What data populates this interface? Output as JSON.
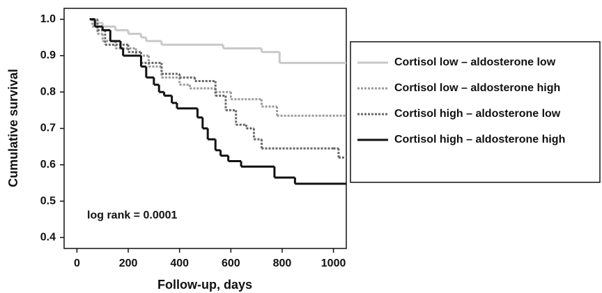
{
  "chart_data": {
    "type": "line",
    "step": "post",
    "x_label": "Follow-up, days",
    "y_label": "Cumulative survival",
    "annotation": "log rank = 0.0001",
    "xlim": [
      -50,
      1050
    ],
    "xticks": [
      0,
      200,
      400,
      600,
      800,
      1000
    ],
    "ylim": [
      0.37,
      1.03
    ],
    "yticks": [
      {
        "value": 0.4,
        "label": "0.4"
      },
      {
        "value": 0.5,
        "label": "0.5"
      },
      {
        "value": 0.6,
        "label": "0.6"
      },
      {
        "value": 0.7,
        "label": "0.7"
      },
      {
        "value": 0.8,
        "label": "0.8"
      },
      {
        "value": 0.9,
        "label": "0.9"
      },
      {
        "value": 1.0,
        "label": "1.0"
      }
    ],
    "series": [
      {
        "name": "Cortisol low – aldosterone low",
        "color": "#c8c8c8",
        "dash": "none",
        "x": [
          50,
          70,
          100,
          150,
          200,
          250,
          270,
          330,
          570,
          720,
          790,
          1050
        ],
        "values": [
          1.0,
          0.99,
          0.98,
          0.97,
          0.96,
          0.95,
          0.94,
          0.93,
          0.92,
          0.91,
          0.88,
          0.88
        ]
      },
      {
        "name": "Cortisol low – aldosterone high",
        "color": "#9a9a9a",
        "dash": "3,2",
        "x": [
          50,
          60,
          80,
          100,
          150,
          230,
          280,
          330,
          400,
          440,
          540,
          600,
          720,
          780,
          1050
        ],
        "values": [
          1.0,
          0.98,
          0.96,
          0.94,
          0.92,
          0.9,
          0.87,
          0.84,
          0.82,
          0.81,
          0.8,
          0.78,
          0.76,
          0.735,
          0.735
        ]
      },
      {
        "name": "Cortisol high – aldosterone low",
        "color": "#666666",
        "dash": "3,2",
        "x": [
          50,
          80,
          110,
          200,
          250,
          330,
          400,
          460,
          540,
          580,
          620,
          660,
          690,
          720,
          1000,
          1020,
          1050
        ],
        "values": [
          1.0,
          0.97,
          0.93,
          0.91,
          0.88,
          0.85,
          0.84,
          0.83,
          0.79,
          0.75,
          0.71,
          0.7,
          0.67,
          0.645,
          0.645,
          0.62,
          0.62
        ]
      },
      {
        "name": "Cortisol high – aldosterone high",
        "color": "#111111",
        "dash": "none",
        "x": [
          50,
          70,
          100,
          130,
          170,
          180,
          250,
          270,
          300,
          320,
          340,
          370,
          390,
          470,
          490,
          510,
          540,
          560,
          590,
          640,
          770,
          850,
          1050
        ],
        "values": [
          1.0,
          0.98,
          0.97,
          0.94,
          0.92,
          0.9,
          0.87,
          0.84,
          0.82,
          0.8,
          0.79,
          0.77,
          0.755,
          0.73,
          0.7,
          0.67,
          0.64,
          0.625,
          0.61,
          0.595,
          0.565,
          0.548,
          0.548
        ]
      }
    ]
  }
}
